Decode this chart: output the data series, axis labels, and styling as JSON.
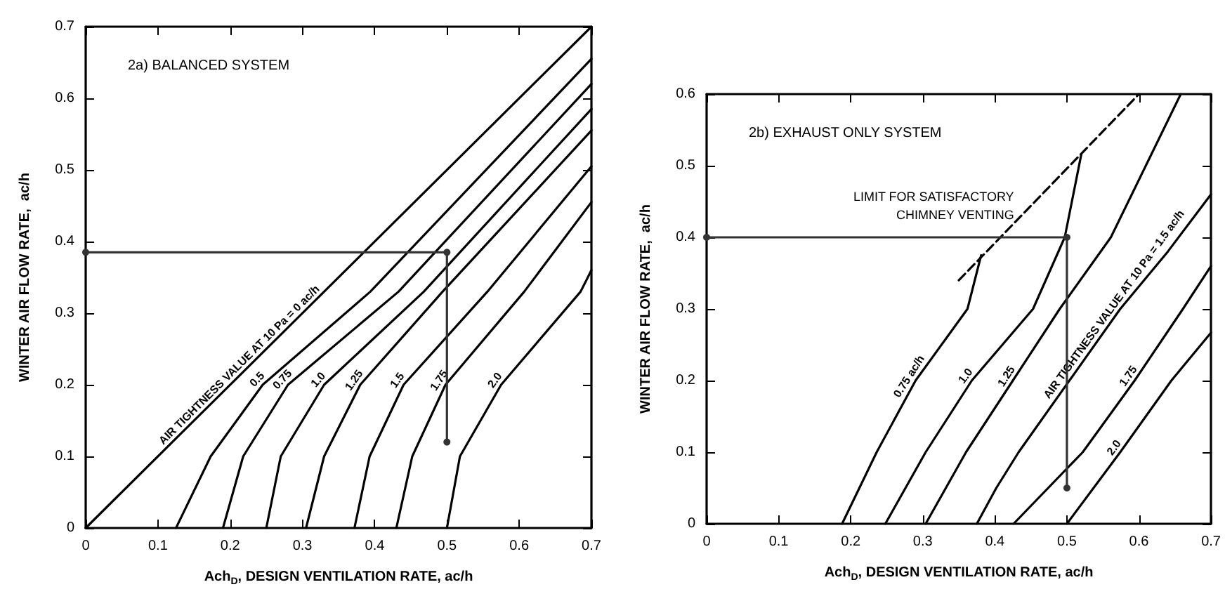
{
  "chart_data": [
    {
      "type": "line",
      "title": "2a) BALANCED SYSTEM",
      "xlabel": "Ach$_{D}$, DESIGN VENTILATION RATE, ac/h",
      "ylabel": "WINTER AIR FLOW RATE,  ac/h",
      "xlim": [
        0,
        0.7
      ],
      "ylim": [
        0,
        0.7
      ],
      "xticks": [
        0,
        0.1,
        0.2,
        0.3,
        0.4,
        0.5,
        0.6,
        0.7
      ],
      "yticks": [
        0,
        0.1,
        0.2,
        0.3,
        0.4,
        0.5,
        0.6,
        0.7
      ],
      "marker": "none",
      "line_style": "solid",
      "series": [
        {
          "name": "AIR TIGHTNESS VALUE AT 10 Pa = 0 ac/h",
          "color": "#000000",
          "x": [
            0,
            0.22,
            0.7
          ],
          "values": [
            0,
            0.22,
            0.7
          ]
        },
        {
          "name": "0.5",
          "color": "#000000",
          "x": [
            0.125,
            0.173,
            0.245,
            0.394,
            0.7
          ],
          "values": [
            0,
            0.1,
            0.2,
            0.33,
            0.655
          ]
        },
        {
          "name": "0.75",
          "color": "#000000",
          "x": [
            0.19,
            0.218,
            0.28,
            0.433,
            0.7
          ],
          "values": [
            0,
            0.1,
            0.2,
            0.33,
            0.62
          ]
        },
        {
          "name": "1.0",
          "color": "#000000",
          "x": [
            0.25,
            0.27,
            0.33,
            0.468,
            0.7
          ],
          "values": [
            0,
            0.1,
            0.2,
            0.33,
            0.585
          ]
        },
        {
          "name": "1.25",
          "color": "#000000",
          "x": [
            0.305,
            0.33,
            0.38,
            0.494,
            0.7
          ],
          "values": [
            0,
            0.1,
            0.2,
            0.33,
            0.555
          ]
        },
        {
          "name": "1.5",
          "color": "#000000",
          "x": [
            0.372,
            0.393,
            0.44,
            0.556,
            0.7
          ],
          "values": [
            0,
            0.1,
            0.2,
            0.33,
            0.505
          ]
        },
        {
          "name": "1.75",
          "color": "#000000",
          "x": [
            0.43,
            0.452,
            0.498,
            0.607,
            0.7
          ],
          "values": [
            0,
            0.1,
            0.2,
            0.33,
            0.455
          ]
        },
        {
          "name": "2.0",
          "color": "#000000",
          "x": [
            0.5,
            0.518,
            0.575,
            0.685,
            0.7
          ],
          "values": [
            0,
            0.1,
            0.2,
            0.33,
            0.36
          ]
        },
        {
          "color": "#333333",
          "marker": "circle",
          "x": [
            0.5,
            0.5,
            0
          ],
          "values": [
            0.12,
            0.385,
            0.385
          ]
        }
      ]
    },
    {
      "type": "line",
      "title": "2b) EXHAUST ONLY SYSTEM",
      "xlabel": "Ach$_{D}$, DESIGN VENTILATION RATE, ac/h",
      "ylabel": "WINTER AIR FLOW RATE,  ac/h",
      "xlim": [
        0,
        0.7
      ],
      "ylim": [
        0,
        0.6
      ],
      "xticks": [
        0,
        0.1,
        0.2,
        0.3,
        0.4,
        0.5,
        0.6,
        0.7
      ],
      "yticks": [
        0,
        0.1,
        0.2,
        0.3,
        0.4,
        0.5,
        0.6
      ],
      "marker": "none",
      "line_style": "solid",
      "annotations": [
        {
          "text": "LIMIT FOR SATISFACTORY\nCHIMNEY VENTING",
          "x": 0.45,
          "y": 0.444
        }
      ],
      "series": [
        {
          "name": "0.75 ac/h",
          "color": "#000000",
          "x": [
            0.188,
            0.236,
            0.29,
            0.362,
            0.381
          ],
          "values": [
            0,
            0.1,
            0.2,
            0.3,
            0.375
          ]
        },
        {
          "name": "1.0",
          "color": "#000000",
          "x": [
            0.248,
            0.304,
            0.368,
            0.453,
            0.497,
            0.52
          ],
          "values": [
            0,
            0.1,
            0.2,
            0.3,
            0.4,
            0.516
          ]
        },
        {
          "name": "1.25",
          "color": "#000000",
          "x": [
            0.304,
            0.36,
            0.425,
            0.49,
            0.561,
            0.658
          ],
          "values": [
            0,
            0.1,
            0.2,
            0.3,
            0.4,
            0.6
          ]
        },
        {
          "name": "AIR TIGHTNESS VALUE AT 10 Pa = 1.5 ac/h",
          "color": "#000000",
          "x": [
            0.375,
            0.402,
            0.433,
            0.574,
            0.607,
            0.64,
            0.7
          ],
          "values": [
            0,
            0.05,
            0.1,
            0.3,
            0.34,
            0.38,
            0.46
          ]
        },
        {
          "name": "1.75",
          "color": "#000000",
          "x": [
            0.426,
            0.522,
            0.594,
            0.661,
            0.7
          ],
          "values": [
            0,
            0.1,
            0.2,
            0.3,
            0.36
          ]
        },
        {
          "name": "2.0",
          "color": "#000000",
          "x": [
            0.5,
            0.574,
            0.645,
            0.7
          ],
          "values": [
            0,
            0.1,
            0.2,
            0.267
          ]
        },
        {
          "color": "#000000",
          "line_style": "dashed",
          "x": [
            0.35,
            0.6
          ],
          "values": [
            0.34,
            0.6
          ]
        },
        {
          "color": "#333333",
          "marker": "circle",
          "x": [
            0.5,
            0.5,
            0
          ],
          "values": [
            0.05,
            0.4,
            0.4
          ]
        }
      ]
    }
  ]
}
